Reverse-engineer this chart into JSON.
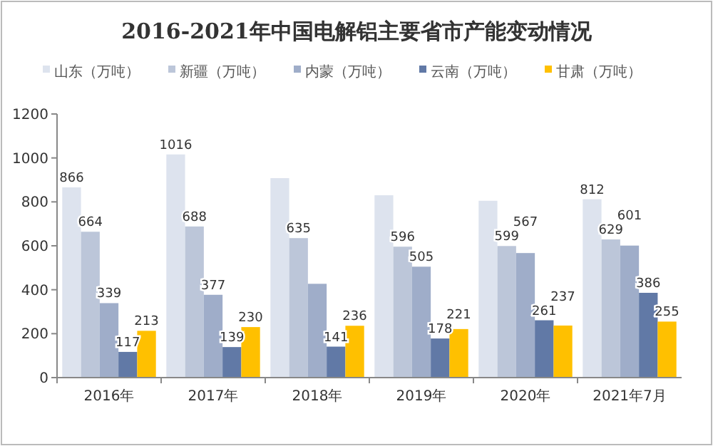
{
  "chart_data": {
    "type": "bar",
    "title": "2016-2021年中国电解铝主要省市产能变动情况",
    "categories": [
      "2016年",
      "2017年",
      "2018年",
      "2019年",
      "2020年",
      "2021年7月"
    ],
    "series": [
      {
        "name": "山东（万吨）",
        "color": "#dde3ee",
        "values": [
          866,
          1016,
          908,
          830,
          805,
          812
        ],
        "value_labels": [
          "866",
          "1016",
          null,
          null,
          null,
          "812"
        ]
      },
      {
        "name": "新疆（万吨）",
        "color": "#bcc6d9",
        "values": [
          664,
          688,
          635,
          596,
          599,
          629
        ],
        "value_labels": [
          "664",
          "688",
          "635",
          "596",
          "599",
          "629"
        ]
      },
      {
        "name": "内蒙（万吨）",
        "color": "#9fadc9",
        "values": [
          339,
          377,
          427,
          505,
          567,
          601
        ],
        "value_labels": [
          "339",
          "377",
          null,
          "505",
          "567",
          "601"
        ]
      },
      {
        "name": "云南（万吨）",
        "color": "#6179a6",
        "values": [
          117,
          139,
          141,
          178,
          261,
          386
        ],
        "value_labels": [
          "117",
          "139",
          "141",
          "178",
          "261",
          "386"
        ]
      },
      {
        "name": "甘肃（万吨）",
        "color": "#ffc000",
        "values": [
          213,
          230,
          236,
          221,
          237,
          255
        ],
        "value_labels": [
          "213",
          "230",
          "236",
          "221",
          "237",
          "255"
        ]
      }
    ],
    "ylim": [
      0,
      1200
    ],
    "yticks": [
      0,
      200,
      400,
      600,
      800,
      1000,
      1200
    ],
    "grid": false,
    "legend": "top"
  }
}
